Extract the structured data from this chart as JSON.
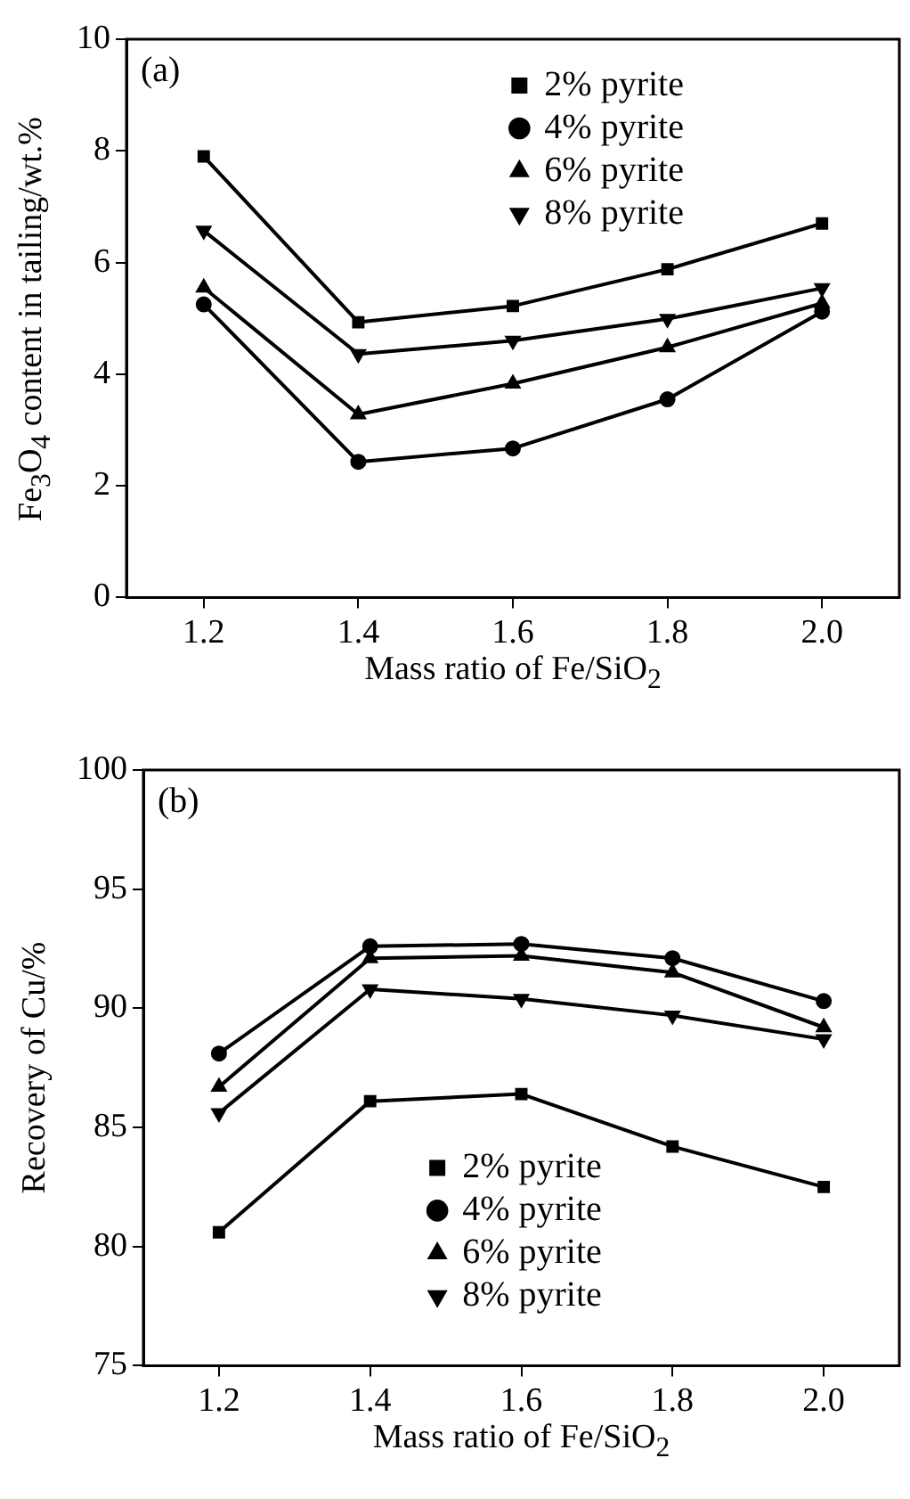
{
  "chart_data": [
    {
      "type": "line",
      "xlabel": "Mass ratio of Fe/SiO$_{2}$",
      "ylabel": "Fe$_{3}$O$_{4}$ content in tailing/wt.%",
      "annotations": [
        "(a)"
      ],
      "x": [
        1.2,
        1.4,
        1.6,
        1.8,
        2.0
      ],
      "xlim": [
        1.1,
        2.1
      ],
      "xticks": [
        1.2,
        1.4,
        1.6,
        1.8,
        {
          "value": 2.0,
          "label": "2.0"
        }
      ],
      "ylim": [
        0,
        10
      ],
      "yticks": [
        0,
        2,
        4,
        6,
        8,
        10
      ],
      "grid": false,
      "legend": "top right",
      "line_style": "solid",
      "series": [
        {
          "name": "2% pyrite",
          "color": "#000000",
          "marker": "square",
          "values": [
            7.9,
            4.93,
            5.22,
            5.88,
            6.7
          ]
        },
        {
          "name": "4% pyrite",
          "color": "#000000",
          "marker": "circle",
          "values": [
            5.25,
            2.43,
            2.67,
            3.55,
            5.12
          ]
        },
        {
          "name": "6% pyrite",
          "color": "#000000",
          "marker": "triangle",
          "values": [
            5.55,
            3.28,
            3.83,
            4.48,
            5.27
          ]
        },
        {
          "name": "8% pyrite",
          "color": "#000000",
          "marker": "triangle-down",
          "values": [
            6.57,
            4.36,
            4.6,
            4.99,
            5.54
          ]
        }
      ]
    },
    {
      "type": "line",
      "xlabel": "Mass ratio of Fe/SiO$_{2}$",
      "ylabel": "Recovery of Cu/%",
      "annotations": [
        "(b)"
      ],
      "x": [
        1.2,
        1.4,
        1.6,
        1.8,
        2.0
      ],
      "xlim": [
        1.1,
        2.1
      ],
      "xticks": [
        1.2,
        1.4,
        1.6,
        1.8,
        {
          "value": 2.0,
          "label": "2.0"
        }
      ],
      "ylim": [
        75,
        100
      ],
      "yticks": [
        75,
        80,
        85,
        90,
        95,
        100
      ],
      "grid": false,
      "legend": "bottom",
      "line_style": "solid",
      "series": [
        {
          "name": "2% pyrite",
          "color": "#000000",
          "marker": "square",
          "values": [
            80.6,
            86.1,
            86.4,
            84.2,
            82.5
          ]
        },
        {
          "name": "4% pyrite",
          "color": "#000000",
          "marker": "circle",
          "values": [
            88.1,
            92.6,
            92.7,
            92.1,
            90.3
          ]
        },
        {
          "name": "6% pyrite",
          "color": "#000000",
          "marker": "triangle",
          "values": [
            86.7,
            92.1,
            92.2,
            91.5,
            89.2
          ]
        },
        {
          "name": "8% pyrite",
          "color": "#000000",
          "marker": "triangle-down",
          "values": [
            85.6,
            90.8,
            90.4,
            89.7,
            88.7
          ]
        }
      ]
    }
  ]
}
